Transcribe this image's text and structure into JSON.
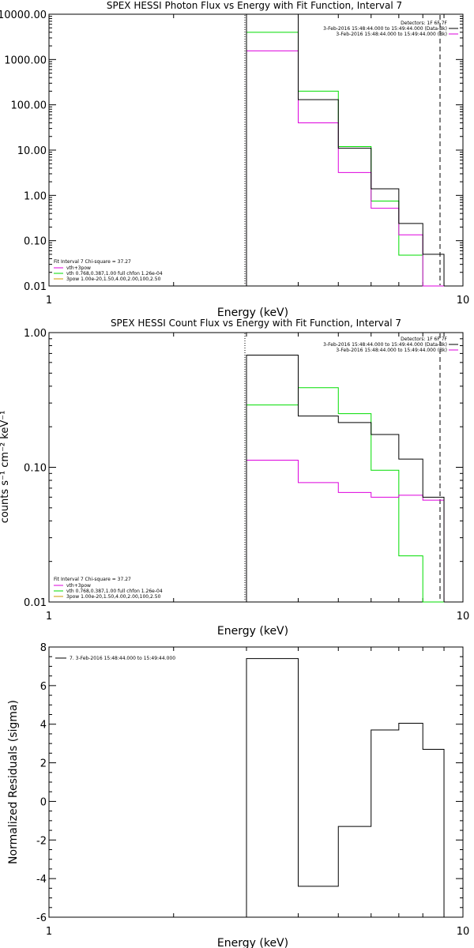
{
  "colors": {
    "black": "#000000",
    "green": "#00dd00",
    "magenta": "#dd00dd",
    "orange": "#cc9900"
  },
  "chart_data": [
    {
      "type": "line",
      "title": "SPEX HESSI Photon Flux vs Energy with Fit Function, Interval 7",
      "xlabel": "Energy (keV)",
      "ylabel": "",
      "xscale": "log",
      "yscale": "log",
      "xlim": [
        1,
        10
      ],
      "ylim": [
        0.01,
        10000
      ],
      "x_tick_labels": [
        "1",
        "10"
      ],
      "y_tick_labels": [
        "10000.00",
        "1000.00",
        "100.00",
        "10.00",
        "1.00",
        "0.10",
        "0.01"
      ],
      "y_tick_values": [
        10000,
        1000,
        100,
        10,
        1,
        0.1,
        0.01
      ],
      "fit_range_keV": [
        3.0,
        9.0
      ],
      "legend_top_right": [
        "Detectors: 1F 6F 7F",
        "3-Feb-2016 15:48:44.000 to 15:49:44.000 (Data-Bk)",
        "3-Feb-2016 15:48:44.000 to 15:49:44.000 (Bk)"
      ],
      "legend_bottom_left": [
        "Fit Interval 7   Chi-square = 37.27",
        "vth+3pow",
        "vth 0.768,0.387,1.00  full chfon 1.26e-04",
        "3pow 1.00e-20,1.50,4.00,2.00,100,2.50"
      ],
      "bin_edges_keV": [
        3.0,
        4.0,
        5.0,
        6.0,
        7.0,
        8.0,
        9.0
      ],
      "series": [
        {
          "name": "3-Feb-2016 15:48:44.000 to 15:49:44.000 (Data-Bk)",
          "color": "black",
          "values": [
            10000,
            130,
            11,
            1.4,
            0.24,
            0.05
          ]
        },
        {
          "name": "vth 0.768,0.387,1.00  full chfon 1.26e-04",
          "color": "green",
          "values": [
            4000,
            200,
            12,
            0.75,
            0.048,
            0.01
          ]
        },
        {
          "name": "3-Feb-2016 15:48:44.000 to 15:49:44.000 (Bk)",
          "color": "magenta",
          "values": [
            1550,
            40,
            3.2,
            0.52,
            0.135,
            0.01
          ]
        }
      ]
    },
    {
      "type": "line",
      "title": "SPEX HESSI Count Flux vs Energy with Fit Function, Interval 7",
      "xlabel": "Energy (keV)",
      "ylabel": "counts s⁻¹ cm⁻² keV⁻¹",
      "xscale": "log",
      "yscale": "log",
      "xlim": [
        1,
        10
      ],
      "ylim": [
        0.01,
        1.0
      ],
      "x_tick_labels": [
        "1",
        "10"
      ],
      "y_tick_labels": [
        "1.00",
        "0.10",
        "0.01"
      ],
      "y_tick_values": [
        1.0,
        0.1,
        0.01
      ],
      "fit_range_keV": [
        3.0,
        9.0
      ],
      "legend_top_right": [
        "Detectors: 1F 6F 7F",
        "3-Feb-2016 15:48:44.000 to 15:49:44.000 (Data-Bk)",
        "3-Feb-2016 15:48:44.000 to 15:49:44.000 (Bk)"
      ],
      "legend_bottom_left": [
        "Fit Interval 7   Chi-square = 37.27",
        "vth+3pow",
        "vth 0.768,0.387,1.00  full chfon 1.26e-04",
        "3pow 1.00e-20,1.50,4.00,2.00,100,2.50"
      ],
      "bin_edges_keV": [
        3.0,
        4.0,
        5.0,
        6.0,
        7.0,
        8.0,
        9.0
      ],
      "series": [
        {
          "name": "3-Feb-2016 15:48:44.000 to 15:49:44.000 (Data-Bk)",
          "color": "black",
          "values": [
            0.68,
            0.24,
            0.215,
            0.175,
            0.115,
            0.06
          ]
        },
        {
          "name": "vth 0.768,0.387,1.00  full chfon 1.26e-04",
          "color": "green",
          "values": [
            0.29,
            0.39,
            0.25,
            0.095,
            0.022,
            0.01
          ]
        },
        {
          "name": "3-Feb-2016 15:48:44.000 to 15:49:44.000 (Bk)",
          "color": "magenta",
          "values": [
            0.113,
            0.077,
            0.065,
            0.06,
            0.062,
            0.057
          ]
        }
      ]
    },
    {
      "type": "line",
      "title": "",
      "xlabel": "Energy (keV)",
      "ylabel": "Normalized Residuals (sigma)",
      "xscale": "log",
      "yscale": "linear",
      "xlim": [
        1,
        10
      ],
      "ylim": [
        -6,
        8
      ],
      "x_tick_labels": [
        "1",
        "10"
      ],
      "y_tick_labels": [
        "8",
        "6",
        "4",
        "2",
        "0",
        "-2",
        "-4",
        "-6"
      ],
      "y_tick_values": [
        8,
        6,
        4,
        2,
        0,
        -2,
        -4,
        -6
      ],
      "legend_top_left": [
        "7.  3-Feb-2016 15:48:44.000 to 15:49:44.000"
      ],
      "bin_edges_keV": [
        3.0,
        4.0,
        5.0,
        6.0,
        7.0,
        8.0,
        9.0
      ],
      "series": [
        {
          "name": "7.  3-Feb-2016 15:48:44.000 to 15:49:44.000",
          "color": "black",
          "values": [
            7.4,
            -4.4,
            -1.3,
            3.7,
            4.05,
            2.7
          ]
        }
      ]
    }
  ]
}
